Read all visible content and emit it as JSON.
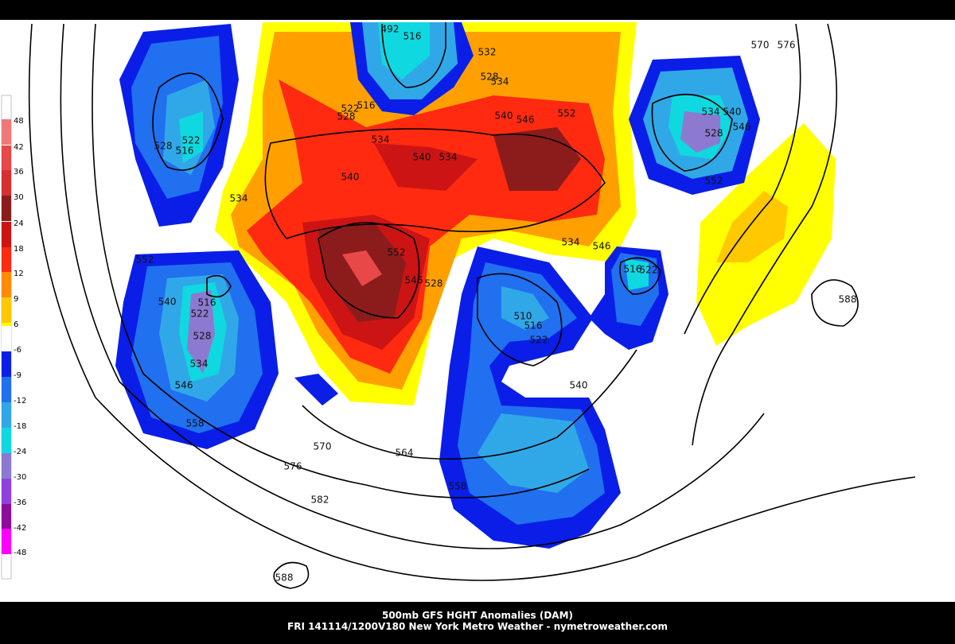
{
  "legend": [
    {
      "label": 48,
      "color": "#f07878"
    },
    {
      "label": 42,
      "color": "#e84848"
    },
    {
      "label": 36,
      "color": "#d83030"
    },
    {
      "label": 30,
      "color": "#8c1c1c"
    },
    {
      "label": 24,
      "color": "#cc1414"
    },
    {
      "label": 18,
      "color": "#ff2a10"
    },
    {
      "label": 12,
      "color": "#ff8a00"
    },
    {
      "label": 9,
      "color": "#ffc800"
    },
    {
      "label": 6,
      "color": "#ffff00"
    },
    {
      "label": -6,
      "color": "#ffffff"
    },
    {
      "label": -9,
      "color": "#0a1ee8"
    },
    {
      "label": -12,
      "color": "#2070f0"
    },
    {
      "label": -18,
      "color": "#30a8e8"
    },
    {
      "label": -24,
      "color": "#10d8e0"
    },
    {
      "label": -30,
      "color": "#8c7ad0"
    },
    {
      "label": -36,
      "color": "#9040e0"
    },
    {
      "label": -42,
      "color": "#8c0c9c"
    },
    {
      "label": -48,
      "color": "#ff00ff"
    }
  ],
  "contour_labels": [
    492,
    516,
    532,
    528,
    534,
    522,
    516,
    528,
    534,
    540,
    534,
    540,
    540,
    546,
    552,
    534,
    570,
    576,
    534,
    540,
    528,
    546,
    552,
    522,
    528,
    516,
    552,
    540,
    516,
    522,
    528,
    534,
    546,
    558,
    552,
    546,
    528,
    534,
    546,
    516,
    522,
    510,
    516,
    522,
    540,
    570,
    564,
    576,
    558,
    582,
    588,
    588
  ],
  "footer": {
    "line1": "500mb GFS HGHT Anomalies (DAM)",
    "line2": "FRI 141114/1200V180 New York Metro Weather - nymetroweather.com"
  }
}
